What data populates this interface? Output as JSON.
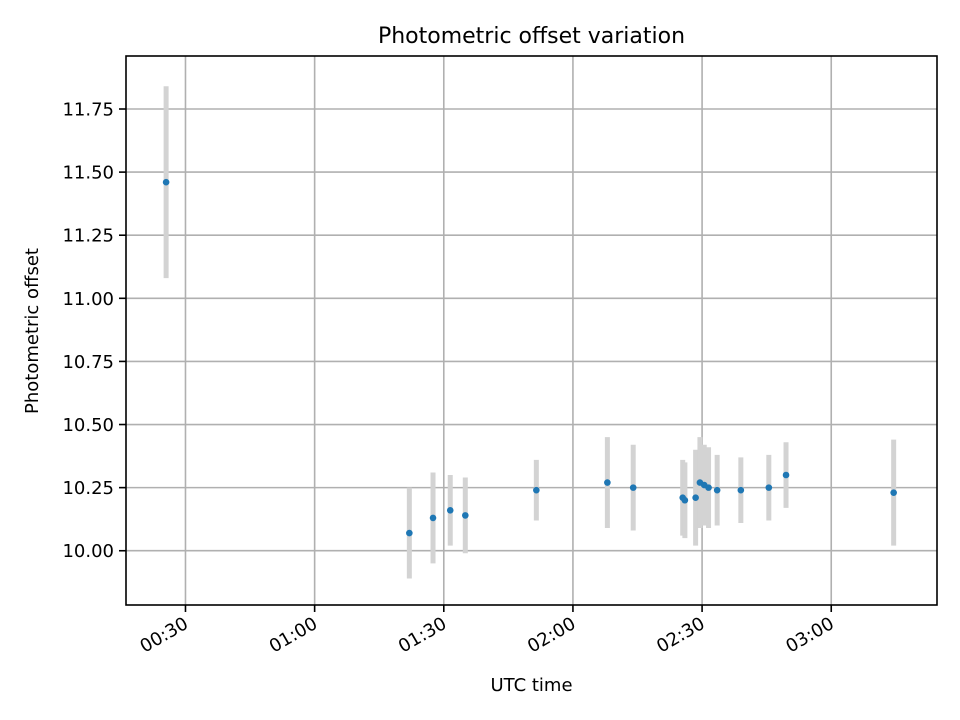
{
  "chart_data": {
    "type": "scatter",
    "title": "Photometric offset variation",
    "xlabel": "UTC time",
    "ylabel": "Photometric offset",
    "grid": true,
    "xlim": [
      "00:16:11",
      "03:24:34"
    ],
    "ylim": [
      9.785,
      11.96
    ],
    "x_ticks": [
      "00:30",
      "01:00",
      "01:30",
      "02:00",
      "02:30",
      "03:00"
    ],
    "y_ticks": [
      "10.00",
      "10.25",
      "10.50",
      "10.75",
      "11.00",
      "11.25",
      "11.50",
      "11.75"
    ],
    "marker_color": "#1f77b4",
    "errorbar_color": "#d3d3d3",
    "series": [
      {
        "points": [
          {
            "x": "00:25:30",
            "y": 11.46,
            "err": 0.38
          },
          {
            "x": "01:22:00",
            "y": 10.07,
            "err": 0.18
          },
          {
            "x": "01:27:30",
            "y": 10.13,
            "err": 0.18
          },
          {
            "x": "01:31:30",
            "y": 10.16,
            "err": 0.14
          },
          {
            "x": "01:35:00",
            "y": 10.14,
            "err": 0.15
          },
          {
            "x": "01:51:30",
            "y": 10.24,
            "err": 0.12
          },
          {
            "x": "02:08:00",
            "y": 10.27,
            "err": 0.18
          },
          {
            "x": "02:14:00",
            "y": 10.25,
            "err": 0.17
          },
          {
            "x": "02:25:30",
            "y": 10.21,
            "err": 0.15
          },
          {
            "x": "02:26:00",
            "y": 10.2,
            "err": 0.15
          },
          {
            "x": "02:28:30",
            "y": 10.21,
            "err": 0.19
          },
          {
            "x": "02:29:30",
            "y": 10.27,
            "err": 0.18
          },
          {
            "x": "02:30:30",
            "y": 10.26,
            "err": 0.16
          },
          {
            "x": "02:31:30",
            "y": 10.25,
            "err": 0.16
          },
          {
            "x": "02:33:30",
            "y": 10.24,
            "err": 0.14
          },
          {
            "x": "02:39:00",
            "y": 10.24,
            "err": 0.13
          },
          {
            "x": "02:45:30",
            "y": 10.25,
            "err": 0.13
          },
          {
            "x": "02:49:30",
            "y": 10.3,
            "err": 0.13
          },
          {
            "x": "03:14:30",
            "y": 10.23,
            "err": 0.21
          }
        ]
      }
    ]
  }
}
